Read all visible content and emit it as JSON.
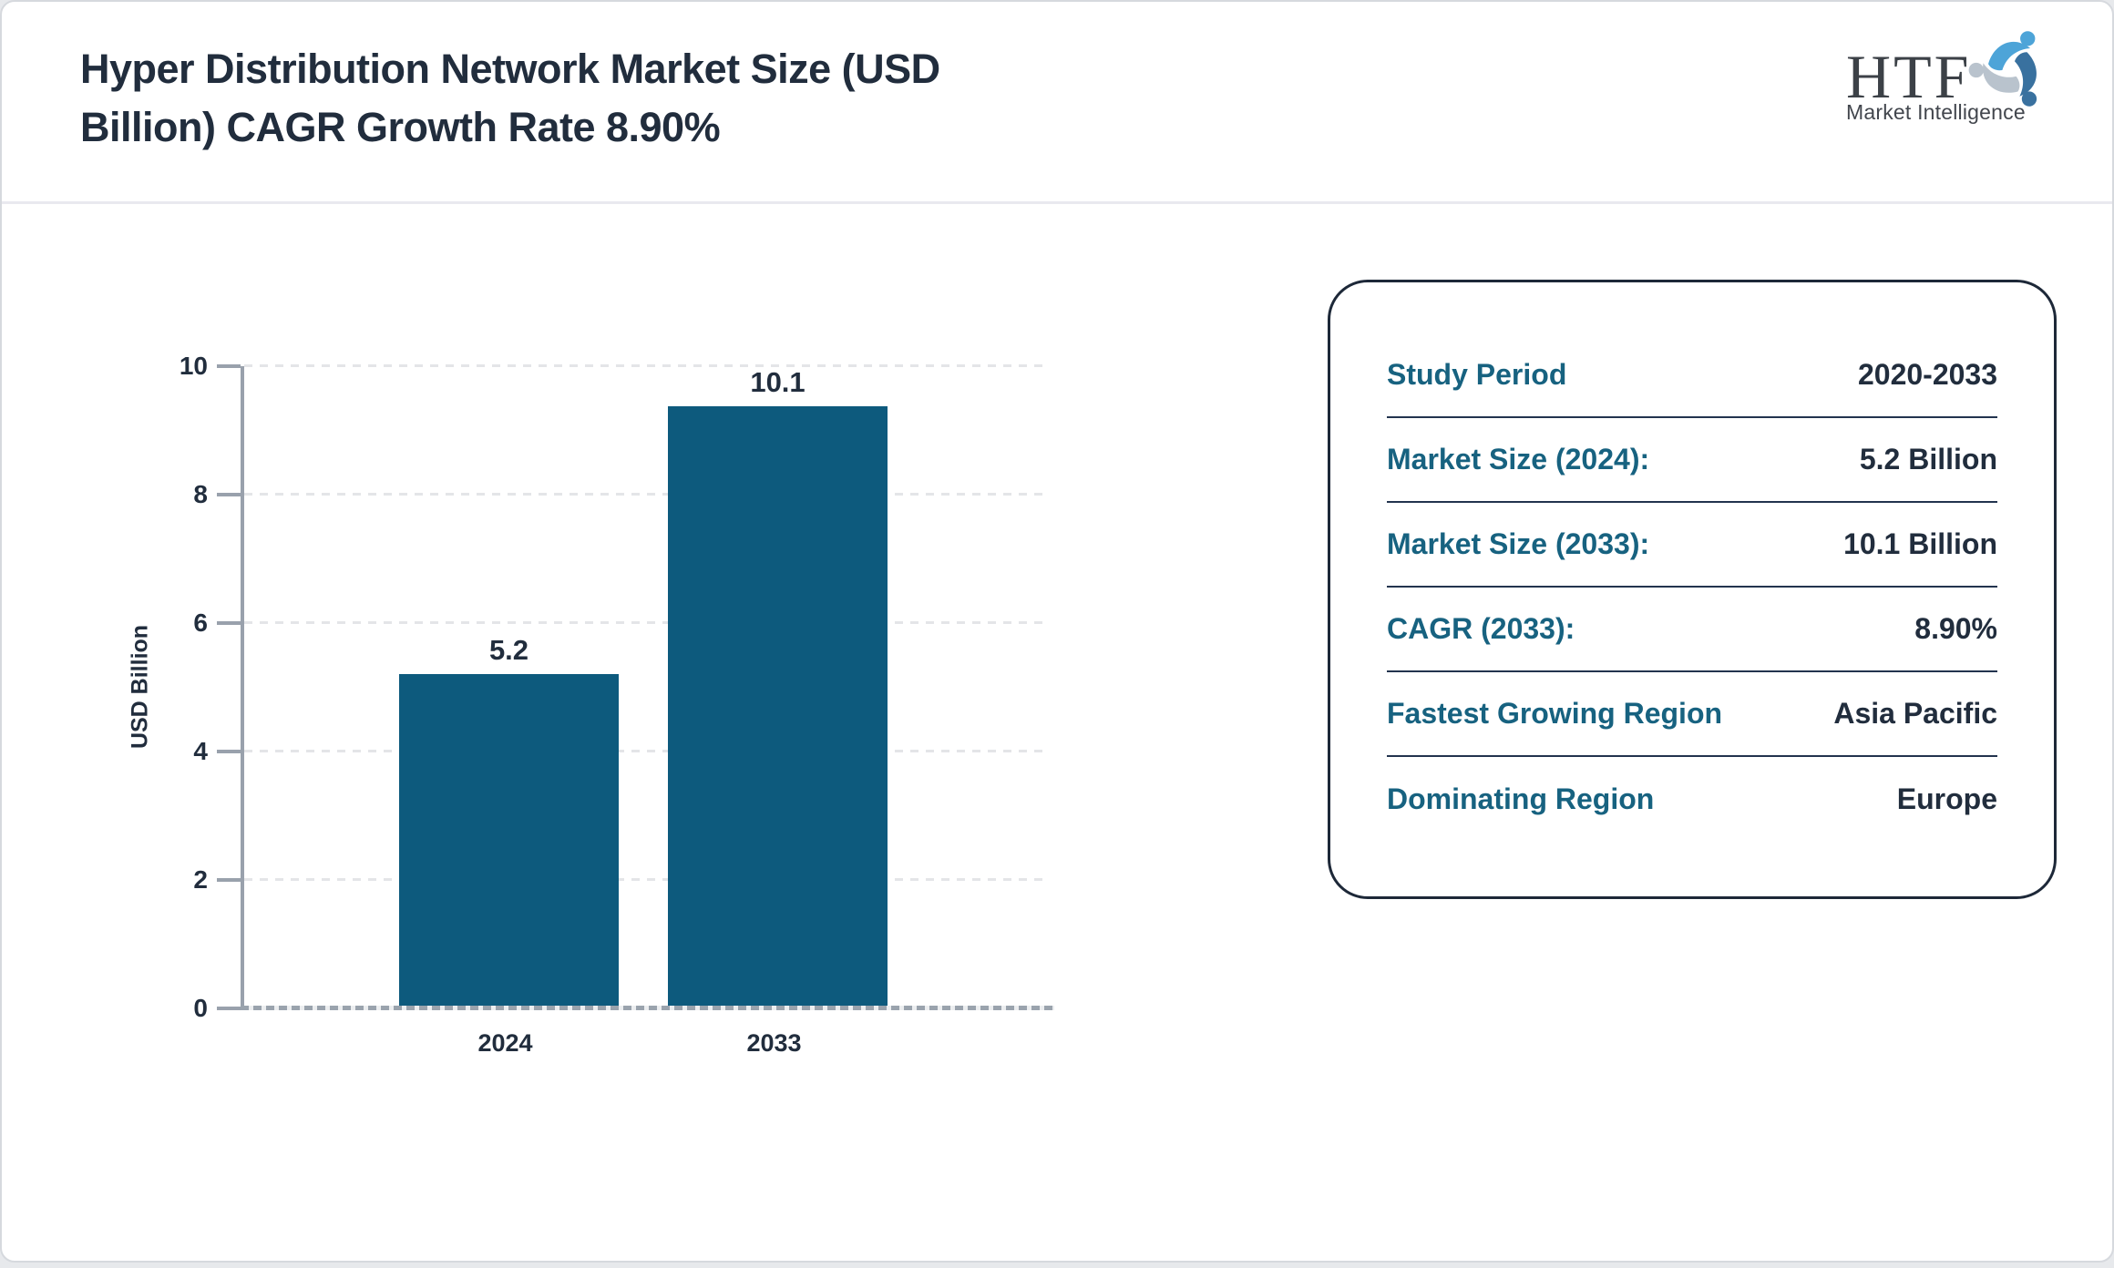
{
  "header": {
    "title_line1": "Hyper Distribution Network Market Size (USD",
    "title_line2": "Billion) CAGR Growth Rate 8.90%"
  },
  "logo": {
    "name": "HTF",
    "subtitle": "Market Intelligence",
    "icon": "tri-swirl-people-icon",
    "icon_colors": [
      "#4da4d8",
      "#b9c3cd",
      "#39719f"
    ]
  },
  "chart_data": {
    "type": "bar",
    "title": "Hyper Distribution Network Market Size (USD Billion) CAGR Growth Rate 8.90%",
    "categories": [
      "2024",
      "2033"
    ],
    "values": [
      5.2,
      10.1
    ],
    "bar_labels": [
      "5.2",
      "10.1"
    ],
    "xlabel": "",
    "ylabel": "USD Billion",
    "ylim": [
      0,
      10
    ],
    "yticks": [
      0,
      2,
      4,
      6,
      8,
      10
    ],
    "grid": "horizontal dashed",
    "legend": "none",
    "bar_color": "#0d5a7d"
  },
  "info_card": {
    "rows": [
      {
        "label": "Study Period",
        "value": "2020-2033"
      },
      {
        "label": "Market Size (2024):",
        "value": "5.2 Billion"
      },
      {
        "label": "Market Size (2033):",
        "value": "10.1 Billion"
      },
      {
        "label": "CAGR (2033):",
        "value": "8.90%"
      },
      {
        "label": "Fastest Growing Region",
        "value": "Asia Pacific"
      },
      {
        "label": "Dominating Region",
        "value": "Europe"
      }
    ]
  },
  "colors": {
    "bar": "#0d5a7d",
    "label_teal": "#176280",
    "navy": "#212d3d",
    "axis_gray": "#99a1ac",
    "gridline": "#e4e5e8"
  }
}
